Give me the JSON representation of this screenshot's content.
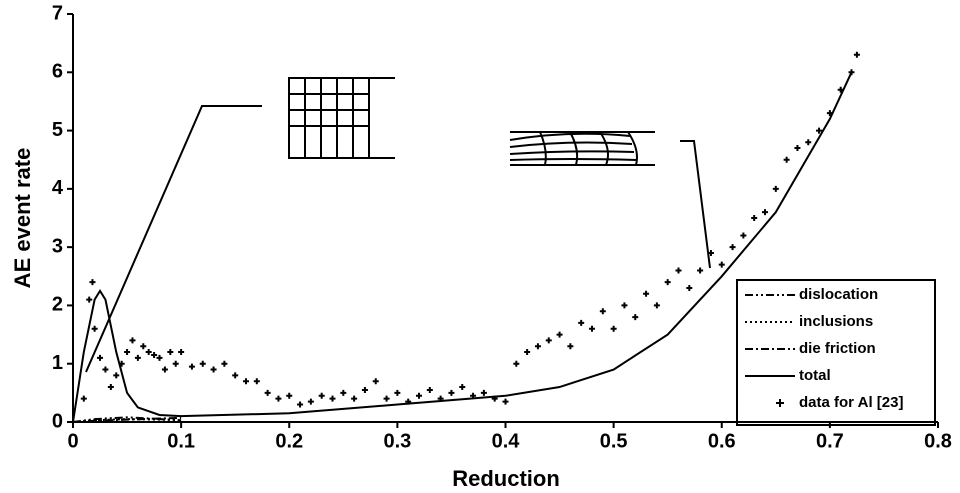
{
  "chart_data": {
    "type": "line",
    "x_label": "Reduction",
    "y_label": "AE event rate",
    "xlim": [
      0,
      0.8
    ],
    "ylim": [
      0,
      7
    ],
    "xticks": [
      0,
      0.1,
      0.2,
      0.3,
      0.4,
      0.5,
      0.6,
      0.7,
      0.8
    ],
    "yticks": [
      0,
      1,
      2,
      3,
      4,
      5,
      6,
      7
    ],
    "series": [
      {
        "name": "dislocation",
        "style": "dash-dot-dot",
        "color": "#000000",
        "x": [
          0,
          0.02,
          0.05,
          0.08,
          0.1
        ],
        "values": [
          0,
          0.05,
          0.08,
          0.05,
          0.03
        ]
      },
      {
        "name": "inclusions",
        "style": "dotted",
        "color": "#000000",
        "x": [
          0,
          0.02,
          0.05,
          0.08,
          0.1
        ],
        "values": [
          0,
          0.03,
          0.05,
          0.04,
          0.03
        ]
      },
      {
        "name": "die friction",
        "style": "dash-dot",
        "color": "#000000",
        "x": [
          0,
          0.02,
          0.05,
          0.08,
          0.1
        ],
        "values": [
          0,
          0.02,
          0.04,
          0.06,
          0.07
        ]
      },
      {
        "name": "total",
        "style": "solid",
        "color": "#000000",
        "x": [
          0,
          0.01,
          0.02,
          0.025,
          0.03,
          0.04,
          0.05,
          0.06,
          0.08,
          0.1,
          0.2,
          0.3,
          0.4,
          0.45,
          0.5,
          0.55,
          0.6,
          0.65,
          0.7,
          0.72
        ],
        "values": [
          0,
          1.2,
          2.1,
          2.25,
          2.1,
          1.2,
          0.5,
          0.25,
          0.12,
          0.1,
          0.15,
          0.3,
          0.45,
          0.6,
          0.9,
          1.5,
          2.5,
          3.6,
          5.2,
          6.0
        ]
      },
      {
        "name": "data for Al [23]",
        "style": "markers",
        "color": "#000000",
        "x": [
          0.01,
          0.015,
          0.018,
          0.02,
          0.025,
          0.03,
          0.035,
          0.04,
          0.045,
          0.05,
          0.055,
          0.06,
          0.065,
          0.07,
          0.075,
          0.08,
          0.085,
          0.09,
          0.095,
          0.1,
          0.11,
          0.12,
          0.13,
          0.14,
          0.15,
          0.16,
          0.17,
          0.18,
          0.19,
          0.2,
          0.21,
          0.22,
          0.23,
          0.24,
          0.25,
          0.26,
          0.27,
          0.28,
          0.29,
          0.3,
          0.31,
          0.32,
          0.33,
          0.34,
          0.35,
          0.36,
          0.37,
          0.38,
          0.39,
          0.4,
          0.41,
          0.42,
          0.43,
          0.44,
          0.45,
          0.46,
          0.47,
          0.48,
          0.49,
          0.5,
          0.51,
          0.52,
          0.53,
          0.54,
          0.55,
          0.56,
          0.57,
          0.58,
          0.59,
          0.6,
          0.61,
          0.62,
          0.63,
          0.64,
          0.65,
          0.66,
          0.67,
          0.68,
          0.69,
          0.7,
          0.71,
          0.72,
          0.725
        ],
        "values": [
          0.4,
          2.1,
          2.4,
          1.6,
          1.1,
          0.9,
          0.6,
          0.8,
          1.0,
          1.2,
          1.4,
          1.1,
          1.3,
          1.2,
          1.15,
          1.1,
          0.9,
          1.2,
          1.0,
          1.2,
          0.95,
          1.0,
          0.9,
          1.0,
          0.8,
          0.7,
          0.7,
          0.5,
          0.4,
          0.45,
          0.3,
          0.35,
          0.45,
          0.4,
          0.5,
          0.4,
          0.55,
          0.7,
          0.4,
          0.5,
          0.35,
          0.45,
          0.55,
          0.4,
          0.5,
          0.6,
          0.45,
          0.5,
          0.4,
          0.35,
          1.0,
          1.2,
          1.3,
          1.4,
          1.5,
          1.3,
          1.7,
          1.6,
          1.9,
          1.6,
          2.0,
          1.8,
          2.2,
          2.0,
          2.4,
          2.6,
          2.3,
          2.6,
          2.9,
          2.7,
          3.0,
          3.2,
          3.5,
          3.6,
          4.0,
          4.5,
          4.7,
          4.8,
          5.0,
          5.3,
          5.7,
          6.0,
          6.3
        ]
      }
    ]
  }
}
